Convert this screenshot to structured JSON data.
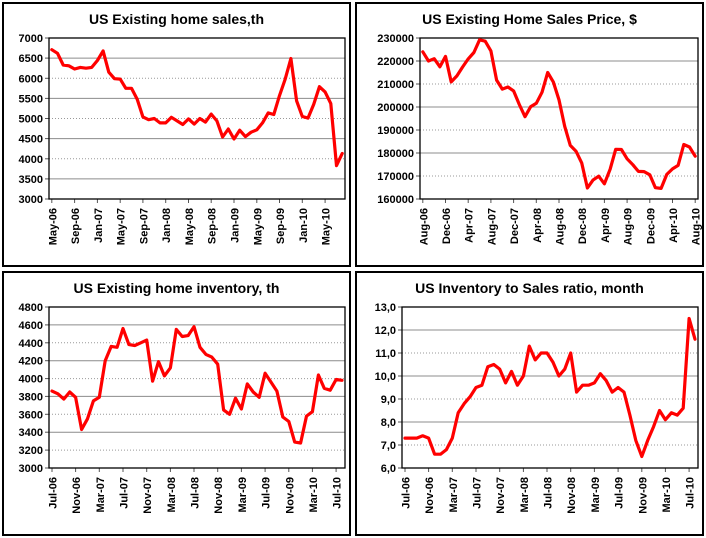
{
  "colors": {
    "line": "#FF0000",
    "plot_border": "#000000",
    "grid_solid": "#8c8c8c",
    "grid_dotted": "#999999",
    "tick": "#555555",
    "text": "#000000",
    "background": "#FFFFFF"
  },
  "chart_data": [
    {
      "type": "line",
      "title": "US Existing home sales,th",
      "x_start": "May-06",
      "x_interval": "monthly",
      "x_tick_step": 4,
      "x_tick_labels": [
        "May-06",
        "Sep-06",
        "Jan-07",
        "May-07",
        "Sep-07",
        "Jan-08",
        "May-08",
        "Sep-08",
        "Jan-09",
        "May-09",
        "Sep-09",
        "Jan-10",
        "May-10"
      ],
      "ylim": [
        3000,
        7000
      ],
      "ytick_step": 500,
      "y_tick_labels": [
        "7000",
        "6500",
        "6000",
        "5500",
        "5000",
        "4500",
        "4000",
        "3500",
        "3000"
      ],
      "grid": true,
      "legend": "none",
      "values": [
        6710,
        6620,
        6330,
        6310,
        6230,
        6270,
        6250,
        6270,
        6440,
        6680,
        6150,
        5990,
        5980,
        5750,
        5750,
        5480,
        5040,
        4970,
        5000,
        4890,
        4890,
        5030,
        4940,
        4850,
        4990,
        4860,
        5000,
        4910,
        5110,
        4940,
        4540,
        4740,
        4490,
        4710,
        4550,
        4660,
        4720,
        4890,
        5140,
        5100,
        5570,
        5980,
        6490,
        5440,
        5050,
        5010,
        5350,
        5790,
        5660,
        5370,
        3830,
        4130
      ]
    },
    {
      "type": "line",
      "title": "US Existing Home Sales Price, $",
      "x_start": "Aug-06",
      "x_interval": "monthly",
      "x_tick_step": 4,
      "x_tick_labels": [
        "Aug-06",
        "Dec-06",
        "Apr-07",
        "Aug-07",
        "Dec-07",
        "Apr-08",
        "Aug-08",
        "Dec-08",
        "Apr-09",
        "Aug-09",
        "Dec-09",
        "Apr-10",
        "Aug-10"
      ],
      "ylim": [
        160000,
        230000
      ],
      "ytick_step": 10000,
      "y_tick_labels": [
        "230000",
        "220000",
        "210000",
        "200000",
        "190000",
        "180000",
        "170000",
        "160000"
      ],
      "grid": true,
      "legend": "none",
      "values": [
        224000,
        220000,
        221000,
        217500,
        222000,
        210900,
        213500,
        217400,
        220900,
        223700,
        229200,
        228600,
        224400,
        211700,
        207800,
        208700,
        207000,
        201100,
        195800,
        200100,
        201600,
        206400,
        215000,
        210900,
        203100,
        191600,
        183300,
        180800,
        175700,
        164800,
        168200,
        169900,
        166600,
        172900,
        181600,
        181500,
        177500,
        174900,
        172000,
        171900,
        170500,
        164900,
        164600,
        170700,
        173100,
        174600,
        183700,
        182600,
        178600
      ]
    },
    {
      "type": "line",
      "title": "US Existing home inventory, th",
      "x_start": "Jul-06",
      "x_interval": "monthly",
      "x_tick_step": 4,
      "x_tick_labels": [
        "Jul-06",
        "Nov-06",
        "Mar-07",
        "Jul-07",
        "Nov-07",
        "Mar-08",
        "Jul-08",
        "Nov-08",
        "Mar-09",
        "Jul-09",
        "Nov-09",
        "Mar-10",
        "Jul-10"
      ],
      "ylim": [
        3000,
        4800
      ],
      "ytick_step": 200,
      "y_tick_labels": [
        "4800",
        "4600",
        "4400",
        "4200",
        "4000",
        "3800",
        "3600",
        "3400",
        "3200",
        "3000"
      ],
      "grid": true,
      "legend": "none",
      "values": [
        3860,
        3830,
        3770,
        3850,
        3790,
        3430,
        3550,
        3750,
        3790,
        4200,
        4360,
        4350,
        4560,
        4380,
        4370,
        4400,
        4430,
        3970,
        4190,
        4030,
        4120,
        4550,
        4470,
        4480,
        4580,
        4350,
        4270,
        4240,
        4160,
        3650,
        3600,
        3780,
        3660,
        3940,
        3850,
        3790,
        4060,
        3960,
        3860,
        3570,
        3520,
        3290,
        3280,
        3580,
        3630,
        4040,
        3890,
        3870,
        3990,
        3980
      ]
    },
    {
      "type": "line",
      "title": "US Inventory to Sales ratio, month",
      "x_start": "Jul-06",
      "x_interval": "monthly",
      "x_tick_step": 4,
      "x_tick_labels": [
        "Jul-06",
        "Nov-06",
        "Mar-07",
        "Jul-07",
        "Nov-07",
        "Mar-08",
        "Jul-08",
        "Nov-08",
        "Mar-09",
        "Jul-09",
        "Nov-09",
        "Mar-10",
        "Jul-10"
      ],
      "ylim": [
        6.0,
        13.0
      ],
      "ytick_step": 1.0,
      "y_tick_labels": [
        "13,0",
        "12,0",
        "11,0",
        "10,0",
        "9,0",
        "8,0",
        "7,0",
        "6,0"
      ],
      "grid": true,
      "legend": "none",
      "values": [
        7.3,
        7.3,
        7.3,
        7.4,
        7.3,
        6.6,
        6.6,
        6.8,
        7.3,
        8.4,
        8.8,
        9.1,
        9.5,
        9.6,
        10.4,
        10.5,
        10.3,
        9.7,
        10.2,
        9.6,
        10.0,
        11.3,
        10.7,
        11.0,
        11.0,
        10.6,
        10.0,
        10.3,
        11.0,
        9.3,
        9.6,
        9.6,
        9.7,
        10.1,
        9.8,
        9.3,
        9.5,
        9.3,
        8.3,
        7.2,
        6.5,
        7.2,
        7.8,
        8.5,
        8.1,
        8.4,
        8.3,
        8.6,
        12.5,
        11.6
      ]
    }
  ]
}
